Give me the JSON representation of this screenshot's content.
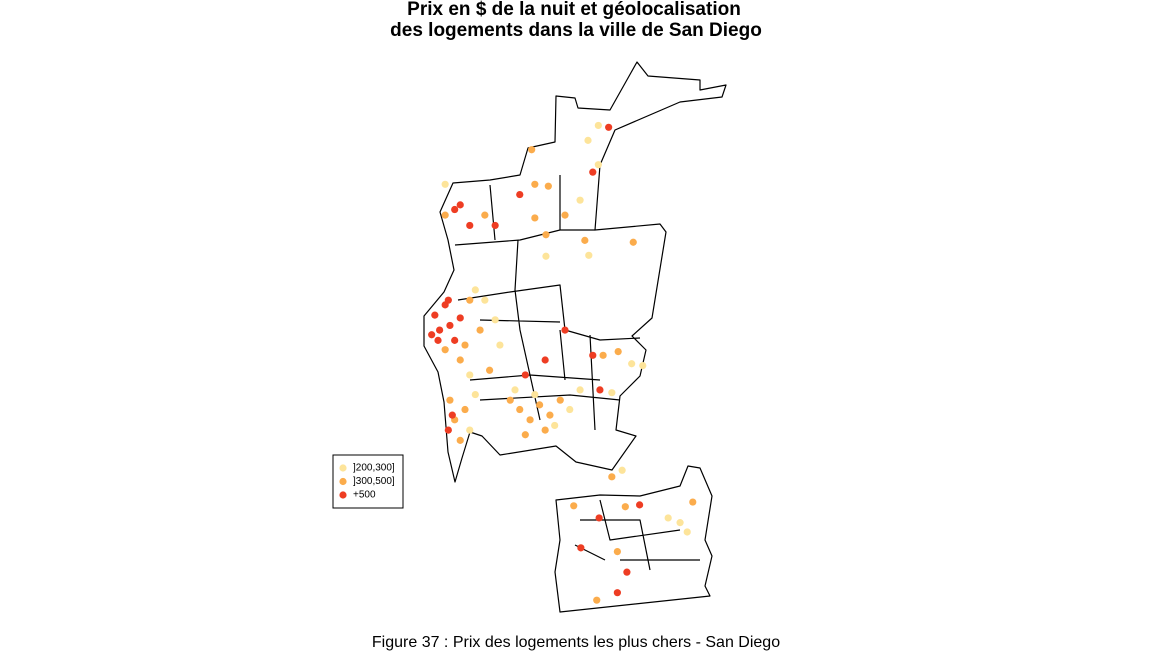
{
  "title": [
    "Prix  en $ de la nuit et géolocalisation",
    "des logements dans la ville de San Diego"
  ],
  "legend": [
    {
      "label": "]200,300]",
      "color": "#fde49a"
    },
    {
      "label": "]300,500]",
      "color": "#fbac4c"
    },
    {
      "label": "+500",
      "color": "#ee3d23"
    }
  ],
  "points": {
    "lon": [
      -117.265,
      -117.259,
      -117.252,
      -117.246,
      -117.261,
      -117.24,
      -117.248,
      -117.233,
      -117.269,
      -117.252,
      -117.227,
      -117.221,
      -117.208,
      -117.233,
      -117.196,
      -117.214,
      -117.202,
      -117.189,
      -117.221,
      -117.183,
      -117.17,
      -117.158,
      -117.145,
      -117.133,
      -117.12,
      -117.151,
      -117.126,
      -117.107,
      -117.164,
      -117.139,
      -117.114,
      -117.095,
      -117.082,
      -117.151,
      -117.126,
      -117.101,
      -117.246,
      -117.24,
      -117.233,
      -117.227,
      -117.248,
      -117.243,
      -117.221,
      -117.214,
      -117.252,
      -117.24,
      -117.233,
      -117.221,
      -117.202,
      -117.189,
      -117.158,
      -117.139,
      -117.122,
      -117.252,
      -117.139,
      -117.125,
      -117.101,
      -117.076,
      -117.071,
      -117.015,
      -117.125,
      -117.082,
      -117.059,
      -117.046,
      -117.072,
      -117.143,
      -117.066,
      -117.059,
      -117.066,
      -117.053,
      -117.034,
      -117.017,
      -117.003,
      -117.057,
      -117.042,
      -117.09,
      -117.058,
      -117.025,
      -117.007,
      -116.971,
      -116.956,
      -116.947,
      -116.94,
      -117.081,
      -117.035,
      -117.023,
      -117.035,
      -117.061,
      -117.042,
      -117.029
    ],
    "lat": [
      32.847,
      32.831,
      32.858,
      32.836,
      32.82,
      32.82,
      32.863,
      32.844,
      32.826,
      32.81,
      32.815,
      32.863,
      32.831,
      32.799,
      32.788,
      32.874,
      32.863,
      32.842,
      32.783,
      32.815,
      32.756,
      32.746,
      32.735,
      32.751,
      32.74,
      32.719,
      32.724,
      32.756,
      32.767,
      32.762,
      32.729,
      32.746,
      32.767,
      32.783,
      32.799,
      32.831,
      32.756,
      32.735,
      32.713,
      32.746,
      32.724,
      32.74,
      32.724,
      32.762,
      32.954,
      32.96,
      32.965,
      32.943,
      32.954,
      32.943,
      32.976,
      32.987,
      32.985,
      32.987,
      32.951,
      32.933,
      32.954,
      32.927,
      32.911,
      32.925,
      32.91,
      32.97,
      33.05,
      33.048,
      33.034,
      33.024,
      33.0,
      33.008,
      32.804,
      32.804,
      32.808,
      32.795,
      32.793,
      32.767,
      32.764,
      32.643,
      32.63,
      32.642,
      32.644,
      32.63,
      32.625,
      32.615,
      32.647,
      32.598,
      32.594,
      32.572,
      32.55,
      32.542,
      32.674,
      32.681
    ],
    "class": [
      2,
      2,
      2,
      2,
      2,
      2,
      2,
      2,
      2,
      1,
      1,
      1,
      1,
      1,
      1,
      0,
      0,
      0,
      0,
      0,
      1,
      1,
      1,
      1,
      1,
      1,
      1,
      1,
      0,
      0,
      0,
      0,
      0,
      2,
      2,
      2,
      1,
      1,
      1,
      1,
      2,
      2,
      0,
      0,
      1,
      2,
      2,
      2,
      1,
      2,
      2,
      1,
      1,
      0,
      1,
      1,
      1,
      1,
      0,
      1,
      0,
      0,
      0,
      2,
      0,
      1,
      2,
      0,
      2,
      1,
      1,
      0,
      0,
      2,
      0,
      1,
      2,
      1,
      2,
      0,
      0,
      0,
      1,
      2,
      1,
      2,
      2,
      1,
      1,
      0
    ]
  },
  "caption": "Figure 37 : Prix des logements les plus chers - San Diego"
}
